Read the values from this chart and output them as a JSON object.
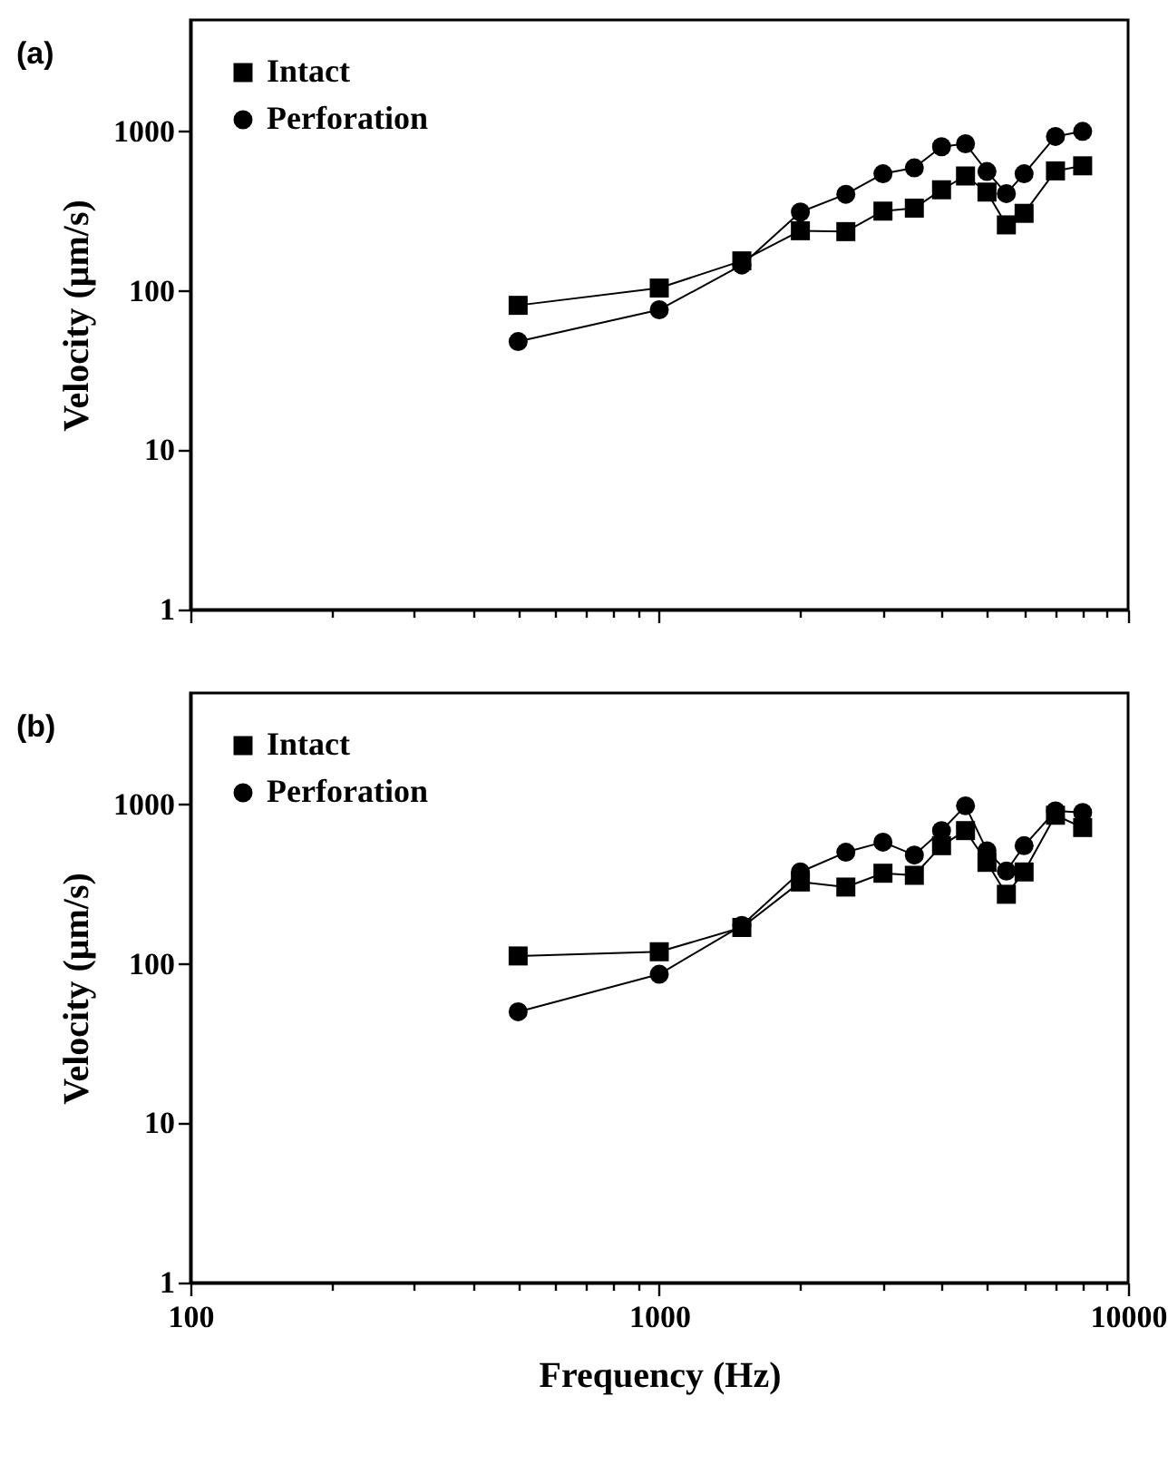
{
  "chart_data": [
    {
      "type": "line",
      "xlim": [
        100,
        10000
      ],
      "ylim": [
        1,
        5000
      ],
      "log": "xy",
      "grid": false,
      "legend": "top left",
      "line_style": "solid",
      "tick_labels": "y",
      "ylabel": "Velocity (μm/s)",
      "annotations": [
        "(a)"
      ],
      "xticks": [
        100,
        {
          "value": 200,
          "label": null
        },
        {
          "value": 300,
          "label": null
        },
        {
          "value": 400,
          "label": null
        },
        {
          "value": 500,
          "label": null
        },
        {
          "value": 600,
          "label": null
        },
        {
          "value": 700,
          "label": null
        },
        {
          "value": 800,
          "label": null
        },
        {
          "value": 900,
          "label": null
        },
        1000,
        {
          "value": 2000,
          "label": null
        },
        {
          "value": 3000,
          "label": null
        },
        {
          "value": 4000,
          "label": null
        },
        {
          "value": 5000,
          "label": null
        },
        {
          "value": 6000,
          "label": null
        },
        {
          "value": 7000,
          "label": null
        },
        {
          "value": 8000,
          "label": null
        },
        {
          "value": 9000,
          "label": null
        },
        10000
      ],
      "yticks": [
        1,
        10,
        100,
        1000
      ],
      "x": [
        500,
        1000,
        1500,
        2000,
        2500,
        3000,
        3500,
        4000,
        4500,
        5000,
        5500,
        6000,
        7000,
        8000
      ],
      "series": [
        {
          "name": "Intact",
          "color": "#000000",
          "marker": "square",
          "values": [
            81,
            104,
            154,
            238,
            235,
            316,
            330,
            430,
            525,
            416,
            259,
            306,
            565,
            608
          ]
        },
        {
          "name": "Perforation",
          "color": "#000000",
          "marker": "circle",
          "values": [
            48,
            76,
            145,
            312,
            403,
            542,
            590,
            801,
            836,
            560,
            407,
            542,
            929,
            1000
          ]
        }
      ]
    },
    {
      "type": "line",
      "xlim": [
        100,
        10000
      ],
      "ylim": [
        1,
        5000
      ],
      "log": "xy",
      "grid": false,
      "legend": "top left",
      "line_style": "solid",
      "xlabel": "Frequency (Hz)",
      "ylabel": "Velocity (μm/s)",
      "annotations": [
        "(b)"
      ],
      "xticks": [
        100,
        {
          "value": 200,
          "label": null
        },
        {
          "value": 300,
          "label": null
        },
        {
          "value": 400,
          "label": null
        },
        {
          "value": 500,
          "label": null
        },
        {
          "value": 600,
          "label": null
        },
        {
          "value": 700,
          "label": null
        },
        {
          "value": 800,
          "label": null
        },
        {
          "value": 900,
          "label": null
        },
        1000,
        {
          "value": 2000,
          "label": null
        },
        {
          "value": 3000,
          "label": null
        },
        {
          "value": 4000,
          "label": null
        },
        {
          "value": 5000,
          "label": null
        },
        {
          "value": 6000,
          "label": null
        },
        {
          "value": 7000,
          "label": null
        },
        {
          "value": 8000,
          "label": null
        },
        {
          "value": 9000,
          "label": null
        },
        10000
      ],
      "yticks": [
        1,
        10,
        100,
        1000
      ],
      "x": [
        500,
        1000,
        1500,
        2000,
        2500,
        3000,
        3500,
        4000,
        4500,
        5000,
        5500,
        6000,
        7000,
        8000
      ],
      "series": [
        {
          "name": "Intact",
          "color": "#000000",
          "marker": "square",
          "values": [
            112,
            119,
            169,
            326,
            303,
            370,
            359,
            551,
            685,
            433,
            273,
            377,
            855,
            716
          ]
        },
        {
          "name": "Perforation",
          "color": "#000000",
          "marker": "circle",
          "values": [
            50,
            86,
            174,
            377,
            501,
            580,
            481,
            685,
            980,
            512,
            382,
            551,
            910,
            891
          ]
        }
      ]
    }
  ]
}
